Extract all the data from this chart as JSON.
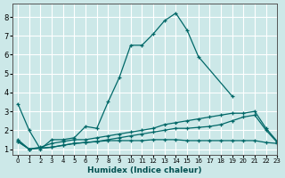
{
  "title": "",
  "xlabel": "Humidex (Indice chaleur)",
  "bg_color": "#cce8e8",
  "grid_color": "#ffffff",
  "line_color": "#006868",
  "xlim": [
    -0.5,
    23
  ],
  "ylim": [
    0.7,
    8.7
  ],
  "xticks": [
    0,
    1,
    2,
    3,
    4,
    5,
    6,
    7,
    8,
    9,
    10,
    11,
    12,
    13,
    14,
    15,
    16,
    17,
    18,
    19,
    20,
    21,
    22,
    23
  ],
  "yticks": [
    1,
    2,
    3,
    4,
    5,
    6,
    7,
    8
  ],
  "lines": [
    {
      "x": [
        0,
        1,
        2,
        3,
        4,
        5,
        6,
        7,
        8,
        9,
        10,
        11,
        12,
        13,
        14,
        15,
        16,
        19
      ],
      "y": [
        3.4,
        2.0,
        1.0,
        1.5,
        1.5,
        1.6,
        2.2,
        2.1,
        3.5,
        4.8,
        6.5,
        6.5,
        7.1,
        7.8,
        8.2,
        7.3,
        5.9,
        3.8
      ]
    },
    {
      "x": [
        0,
        1,
        2,
        3,
        4,
        5,
        6,
        7,
        8,
        9,
        10,
        11,
        12,
        13,
        14,
        15,
        16,
        17,
        18,
        19,
        20,
        21,
        22,
        23
      ],
      "y": [
        1.5,
        1.0,
        1.1,
        1.3,
        1.4,
        1.5,
        1.5,
        1.6,
        1.7,
        1.8,
        1.9,
        2.0,
        2.1,
        2.3,
        2.4,
        2.5,
        2.6,
        2.7,
        2.8,
        2.9,
        2.9,
        3.0,
        2.1,
        1.4
      ]
    },
    {
      "x": [
        0,
        1,
        2,
        3,
        4,
        5,
        6,
        7,
        8,
        9,
        10,
        11,
        12,
        13,
        14,
        15,
        16,
        17,
        18,
        19,
        20,
        21,
        22,
        23
      ],
      "y": [
        1.4,
        1.0,
        1.05,
        1.1,
        1.2,
        1.3,
        1.35,
        1.4,
        1.45,
        1.45,
        1.45,
        1.45,
        1.5,
        1.5,
        1.5,
        1.45,
        1.45,
        1.45,
        1.45,
        1.45,
        1.45,
        1.45,
        1.35,
        1.3
      ]
    },
    {
      "x": [
        0,
        1,
        2,
        3,
        4,
        5,
        6,
        7,
        8,
        9,
        10,
        11,
        12,
        13,
        14,
        15,
        16,
        17,
        18,
        19,
        20,
        21,
        22,
        23
      ],
      "y": [
        1.4,
        1.0,
        1.05,
        1.1,
        1.2,
        1.3,
        1.35,
        1.4,
        1.5,
        1.6,
        1.7,
        1.8,
        1.9,
        2.0,
        2.1,
        2.1,
        2.15,
        2.2,
        2.3,
        2.5,
        2.7,
        2.8,
        2.0,
        1.35
      ]
    }
  ]
}
